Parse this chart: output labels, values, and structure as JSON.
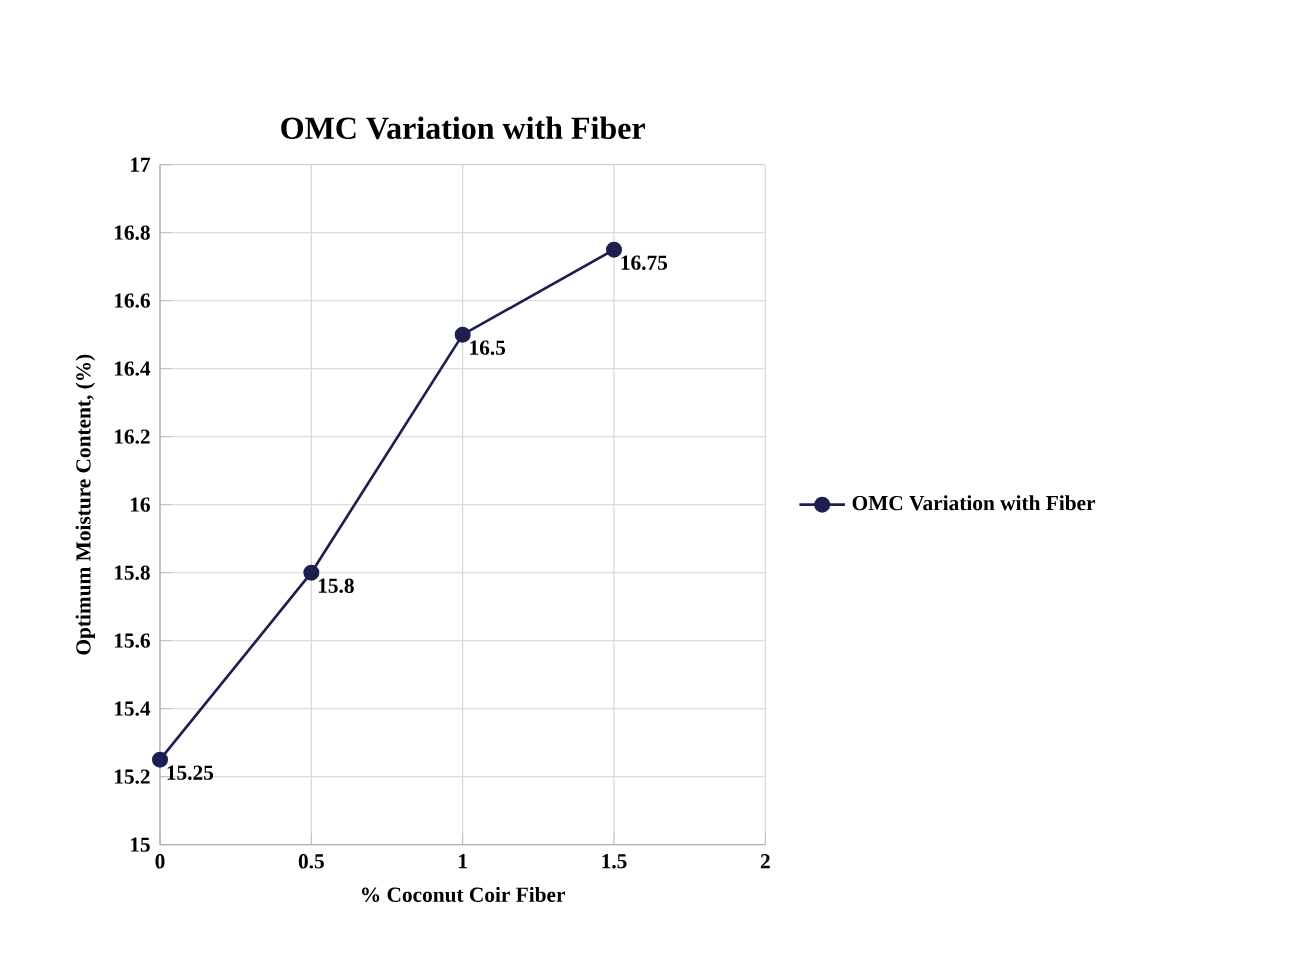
{
  "chart_data": {
    "type": "line",
    "title": "OMC Variation with Fiber",
    "xlabel": "% Coconut Coir Fiber",
    "ylabel": "Optimum Moisture Content, (%)",
    "x": [
      0,
      0.5,
      1,
      1.5
    ],
    "series": [
      {
        "name": "OMC Variation with Fiber",
        "color": "#1c1f4f",
        "values": [
          15.25,
          15.8,
          16.5,
          16.75
        ]
      }
    ],
    "xlim": [
      0,
      2
    ],
    "xticks": [
      0,
      0.5,
      1,
      1.5,
      2
    ],
    "ylim": [
      15,
      17
    ],
    "yticks": [
      15,
      15.2,
      15.4,
      15.6,
      15.8,
      16,
      16.2,
      16.4,
      16.6,
      16.8,
      17
    ],
    "grid": true,
    "legend": "right",
    "marker": "circle",
    "line_style": "solid",
    "data_labels": true
  }
}
